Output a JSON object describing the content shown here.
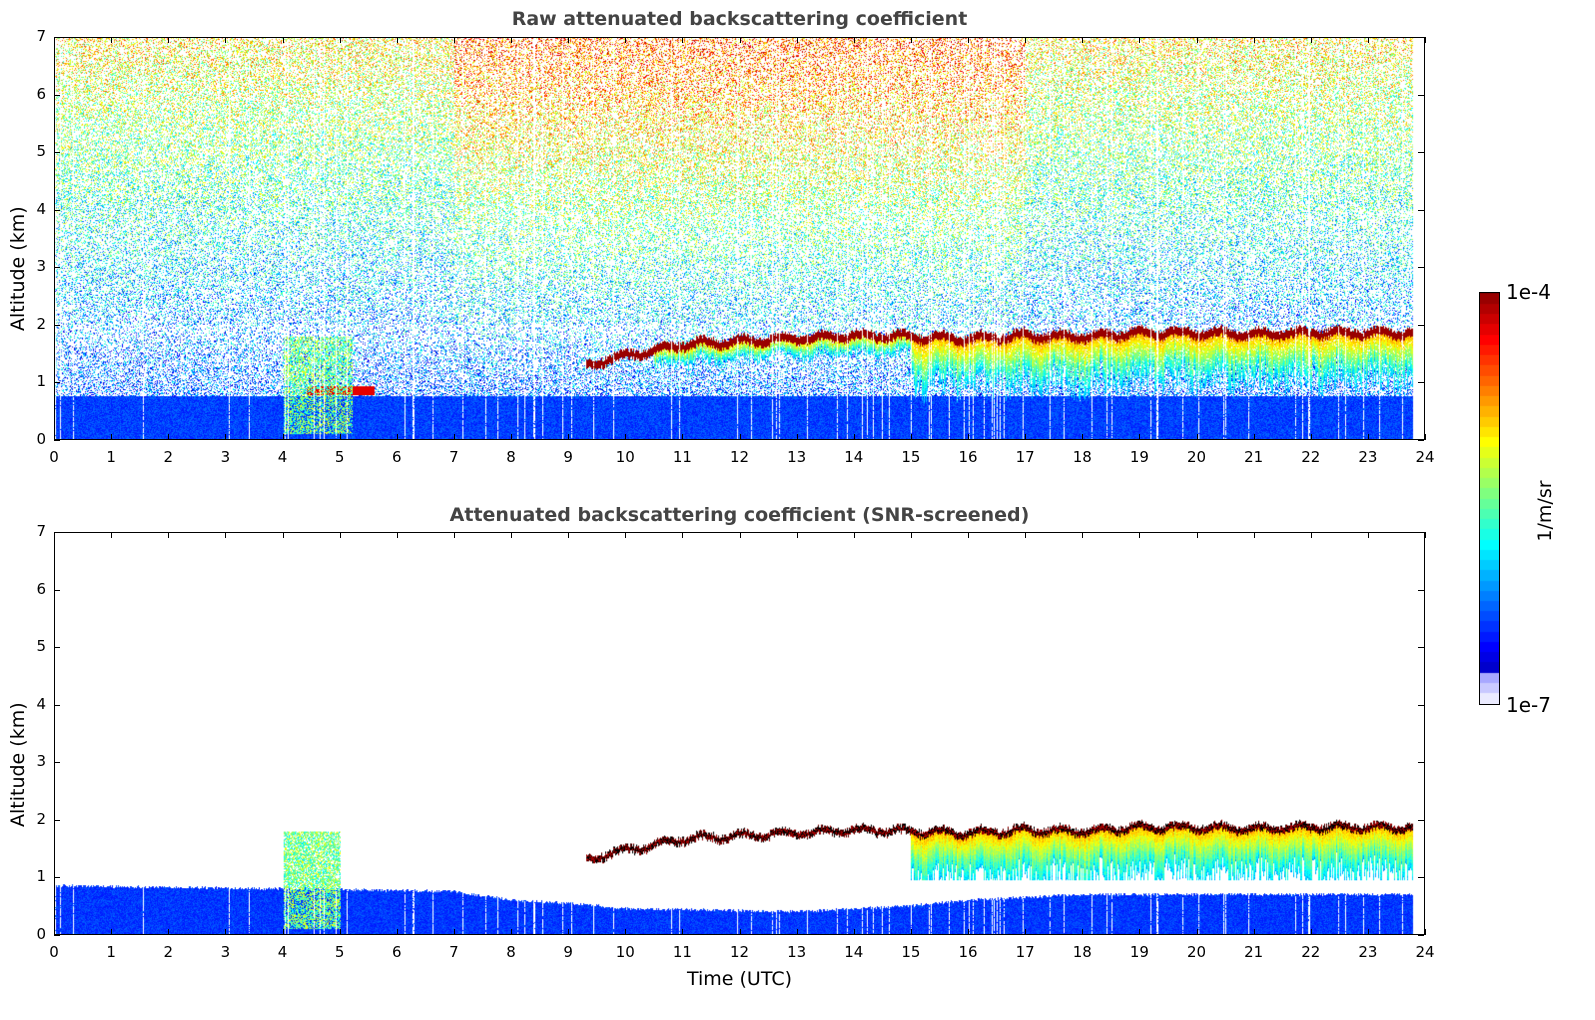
{
  "chart_data": [
    {
      "type": "heatmap",
      "title": "Raw attenuated backscattering coefficient",
      "xlabel": "",
      "ylabel": "Altitude (km)",
      "xlim": [
        0,
        24
      ],
      "ylim": [
        0,
        7
      ],
      "xticks": [
        "0",
        "1",
        "2",
        "3",
        "4",
        "5",
        "6",
        "7",
        "8",
        "9",
        "10",
        "11",
        "12",
        "13",
        "14",
        "15",
        "16",
        "17",
        "18",
        "19",
        "20",
        "21",
        "22",
        "23",
        "24"
      ],
      "yticks": [
        "0",
        "1",
        "2",
        "3",
        "4",
        "5",
        "6",
        "7"
      ],
      "data_end_hour": 23.8,
      "features": {
        "boundary_layer_top_km": 0.75,
        "cloud_layer": {
          "start_hour": 9.3,
          "end_hour": 23.8,
          "base_km": [
            [
              9.3,
              1.3
            ],
            [
              10,
              1.45
            ],
            [
              11,
              1.65
            ],
            [
              12,
              1.7
            ],
            [
              13,
              1.75
            ],
            [
              14,
              1.8
            ],
            [
              15,
              1.78
            ],
            [
              16,
              1.75
            ],
            [
              17,
              1.8
            ],
            [
              18,
              1.78
            ],
            [
              19,
              1.85
            ],
            [
              20,
              1.85
            ],
            [
              21,
              1.82
            ],
            [
              22,
              1.85
            ],
            [
              23,
              1.85
            ],
            [
              23.8,
              1.85
            ]
          ]
        },
        "aerosol_plume_hours": [
          4.0,
          5.7
        ]
      }
    },
    {
      "type": "heatmap",
      "title": "Attenuated backscattering coefficient (SNR-screened)",
      "xlabel": "Time (UTC)",
      "ylabel": "Altitude (km)",
      "xlim": [
        0,
        24
      ],
      "ylim": [
        0,
        7
      ],
      "xticks": [
        "0",
        "1",
        "2",
        "3",
        "4",
        "5",
        "6",
        "7",
        "8",
        "9",
        "10",
        "11",
        "12",
        "13",
        "14",
        "15",
        "16",
        "17",
        "18",
        "19",
        "20",
        "21",
        "22",
        "23",
        "24"
      ],
      "yticks": [
        "0",
        "1",
        "2",
        "3",
        "4",
        "5",
        "6",
        "7"
      ],
      "features": {
        "screened_boundary_layer_top_km": [
          [
            0,
            0.85
          ],
          [
            4,
            0.8
          ],
          [
            7,
            0.75
          ],
          [
            8,
            0.6
          ],
          [
            9,
            0.55
          ],
          [
            10,
            0.45
          ],
          [
            13,
            0.4
          ],
          [
            15,
            0.5
          ],
          [
            16,
            0.6
          ],
          [
            18,
            0.7
          ],
          [
            23.8,
            0.7
          ]
        ]
      }
    }
  ],
  "colorbar": {
    "label": "1/m/sr",
    "max_label": "1e-4",
    "min_label": "1e-7",
    "range": [
      1e-07,
      0.0001
    ],
    "scale": "log",
    "colormap": "jet"
  }
}
